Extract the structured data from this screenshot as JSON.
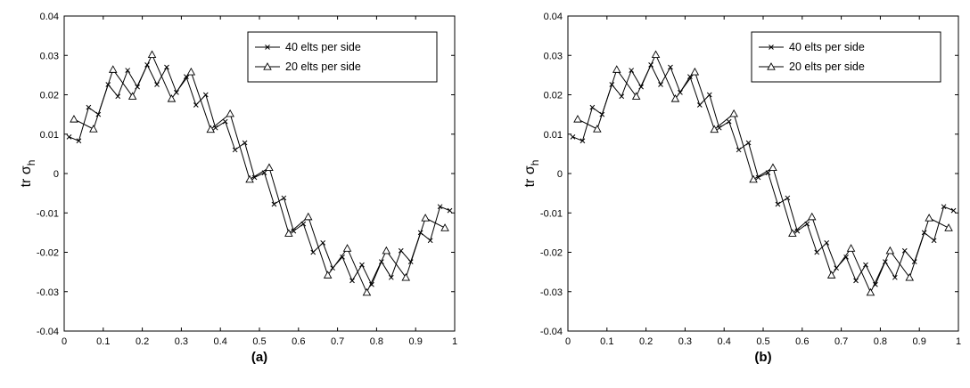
{
  "chart_data": [
    {
      "type": "line",
      "caption": "(a)",
      "ylabel_main": "tr σ",
      "ylabel_sub": "h",
      "xlim": [
        0,
        1
      ],
      "ylim": [
        -0.04,
        0.04
      ],
      "xticks": [
        "0",
        "0.1",
        "0.2",
        "0.3",
        "0.4",
        "0.5",
        "0.6",
        "0.7",
        "0.8",
        "0.9",
        "1"
      ],
      "yticks": [
        "0.04",
        "0.03",
        "0.02",
        "0.01",
        "0",
        "-0.01",
        "-0.02",
        "-0.03",
        "-0.04"
      ],
      "legend_position": "top-right",
      "series": [
        {
          "name": "40 elts per side",
          "marker": "x",
          "x": [
            0.0125,
            0.0375,
            0.0625,
            0.0875,
            0.1125,
            0.1375,
            0.1625,
            0.1875,
            0.2125,
            0.2375,
            0.2625,
            0.2875,
            0.3125,
            0.3375,
            0.3625,
            0.3875,
            0.4125,
            0.4375,
            0.4625,
            0.4875,
            0.5125,
            0.5375,
            0.5625,
            0.5875,
            0.6125,
            0.6375,
            0.6625,
            0.6875,
            0.7125,
            0.7375,
            0.7625,
            0.7875,
            0.8125,
            0.8375,
            0.8625,
            0.8875,
            0.9125,
            0.9375,
            0.9625,
            0.9875
          ],
          "y": [
            0.0093,
            0.0083,
            0.0168,
            0.015,
            0.0226,
            0.0196,
            0.0262,
            0.022,
            0.0276,
            0.0226,
            0.027,
            0.0206,
            0.0246,
            0.0174,
            0.02,
            0.0116,
            0.0132,
            0.006,
            0.0078,
            -0.001,
            0.0002,
            -0.0078,
            -0.0062,
            -0.0146,
            -0.0128,
            -0.02,
            -0.0176,
            -0.024,
            -0.0212,
            -0.0272,
            -0.0232,
            -0.0282,
            -0.0224,
            -0.0264,
            -0.0196,
            -0.0224,
            -0.015,
            -0.017,
            -0.0084,
            -0.0094
          ]
        },
        {
          "name": "20 elts per side",
          "marker": "triangle",
          "x": [
            0.025,
            0.075,
            0.125,
            0.175,
            0.225,
            0.275,
            0.325,
            0.375,
            0.425,
            0.475,
            0.525,
            0.575,
            0.625,
            0.675,
            0.725,
            0.775,
            0.825,
            0.875,
            0.925,
            0.975
          ],
          "y": [
            0.0138,
            0.0113,
            0.0264,
            0.0196,
            0.0302,
            0.019,
            0.0258,
            0.0112,
            0.0152,
            -0.0015,
            0.0015,
            -0.0152,
            -0.011,
            -0.0258,
            -0.019,
            -0.0302,
            -0.0196,
            -0.0264,
            -0.0113,
            -0.0138
          ]
        }
      ]
    },
    {
      "type": "line",
      "caption": "(b)",
      "ylabel_main": "tr σ",
      "ylabel_sub": "h",
      "xlim": [
        0,
        1
      ],
      "ylim": [
        -0.04,
        0.04
      ],
      "xticks": [
        "0",
        "0.1",
        "0.2",
        "0.3",
        "0.4",
        "0.5",
        "0.6",
        "0.7",
        "0.8",
        "0.9",
        "1"
      ],
      "yticks": [
        "0.04",
        "0.03",
        "0.02",
        "0.01",
        "0",
        "-0.01",
        "-0.02",
        "-0.03",
        "-0.04"
      ],
      "legend_position": "top-right",
      "series": [
        {
          "name": "40 elts per side",
          "marker": "x",
          "x": [
            0.0125,
            0.0375,
            0.0625,
            0.0875,
            0.1125,
            0.1375,
            0.1625,
            0.1875,
            0.2125,
            0.2375,
            0.2625,
            0.2875,
            0.3125,
            0.3375,
            0.3625,
            0.3875,
            0.4125,
            0.4375,
            0.4625,
            0.4875,
            0.5125,
            0.5375,
            0.5625,
            0.5875,
            0.6125,
            0.6375,
            0.6625,
            0.6875,
            0.7125,
            0.7375,
            0.7625,
            0.7875,
            0.8125,
            0.8375,
            0.8625,
            0.8875,
            0.9125,
            0.9375,
            0.9625,
            0.9875
          ],
          "y": [
            0.0093,
            0.0083,
            0.0168,
            0.015,
            0.0226,
            0.0196,
            0.0262,
            0.022,
            0.0276,
            0.0226,
            0.027,
            0.0206,
            0.0246,
            0.0174,
            0.02,
            0.0116,
            0.0132,
            0.006,
            0.0078,
            -0.001,
            0.0002,
            -0.0078,
            -0.0062,
            -0.0146,
            -0.0128,
            -0.02,
            -0.0176,
            -0.024,
            -0.0212,
            -0.0272,
            -0.0232,
            -0.0282,
            -0.0224,
            -0.0264,
            -0.0196,
            -0.0224,
            -0.015,
            -0.017,
            -0.0084,
            -0.0094
          ]
        },
        {
          "name": "20 elts per side",
          "marker": "triangle",
          "x": [
            0.025,
            0.075,
            0.125,
            0.175,
            0.225,
            0.275,
            0.325,
            0.375,
            0.425,
            0.475,
            0.525,
            0.575,
            0.625,
            0.675,
            0.725,
            0.775,
            0.825,
            0.875,
            0.925,
            0.975
          ],
          "y": [
            0.0138,
            0.0113,
            0.0264,
            0.0196,
            0.0302,
            0.019,
            0.0258,
            0.0112,
            0.0152,
            -0.0015,
            0.0015,
            -0.0152,
            -0.011,
            -0.0258,
            -0.019,
            -0.0302,
            -0.0196,
            -0.0264,
            -0.0113,
            -0.0138
          ]
        }
      ]
    }
  ]
}
